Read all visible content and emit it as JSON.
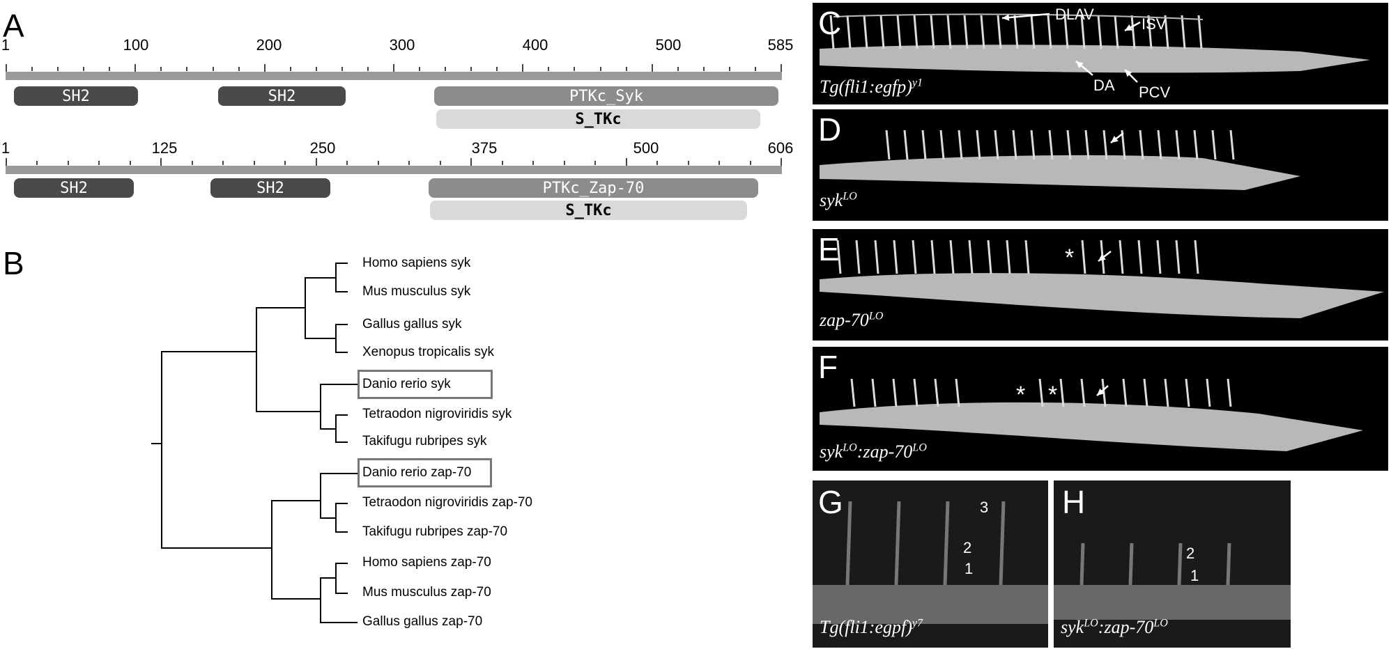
{
  "panels": {
    "A": "A",
    "B": "B",
    "C": "C",
    "D": "D",
    "E": "E",
    "F": "F",
    "G": "G",
    "H": "H"
  },
  "domain_maps": [
    {
      "length_label": "585",
      "ticks": [
        "1",
        "100",
        "200",
        "300",
        "400",
        "500",
        "585"
      ],
      "domains": [
        {
          "label": "SH2",
          "style": "dark"
        },
        {
          "label": "SH2",
          "style": "dark"
        },
        {
          "label": "PTKc_Syk",
          "style": "mid"
        },
        {
          "label": "S_TKc",
          "style": "light"
        }
      ]
    },
    {
      "length_label": "606",
      "ticks": [
        "1",
        "125",
        "250",
        "375",
        "500",
        "606"
      ],
      "domains": [
        {
          "label": "SH2",
          "style": "dark"
        },
        {
          "label": "SH2",
          "style": "dark"
        },
        {
          "label": "PTKc_Zap-70",
          "style": "mid"
        },
        {
          "label": "S_TKc",
          "style": "light"
        }
      ]
    }
  ],
  "tree": {
    "leaves": [
      "Homo sapiens syk",
      "Mus musculus syk",
      "Gallus gallus syk",
      "Xenopus tropicalis syk",
      "Danio rerio syk",
      "Tetraodon nigroviridis syk",
      "Takifugu rubripes syk",
      "Danio rerio zap-70",
      "Tetraodon nigroviridis zap-70",
      "Takifugu rubripes zap-70",
      "Homo sapiens zap-70",
      "Mus musculus zap-70",
      "Gallus gallus zap-70"
    ],
    "boxed": [
      "Danio rerio syk",
      "Danio rerio zap-70"
    ]
  },
  "micrographs": {
    "C": {
      "label_main": "Tg(fli1:egfp)",
      "label_sup": "y1",
      "annotations": {
        "dlav": "DLAV",
        "isv": "ISV",
        "da": "DA",
        "pcv": "PCV"
      }
    },
    "D": {
      "label_main": "syk",
      "label_sup": "LO"
    },
    "E": {
      "label_main": "zap-70",
      "label_sup": "LO",
      "star": "*"
    },
    "F": {
      "label_a": "syk",
      "label_a_sup": "LO",
      "label_b": ":zap-70",
      "label_b_sup": "LO",
      "star": "*"
    },
    "G": {
      "label_main": "Tg(fli1:egpf)",
      "label_sup": "y7",
      "numbers": [
        "3",
        "2",
        "1"
      ]
    },
    "H": {
      "label_a": "syk",
      "label_a_sup": "LO",
      "label_b": ":zap-70",
      "label_b_sup": "LO",
      "numbers": [
        "2",
        "1"
      ]
    }
  }
}
